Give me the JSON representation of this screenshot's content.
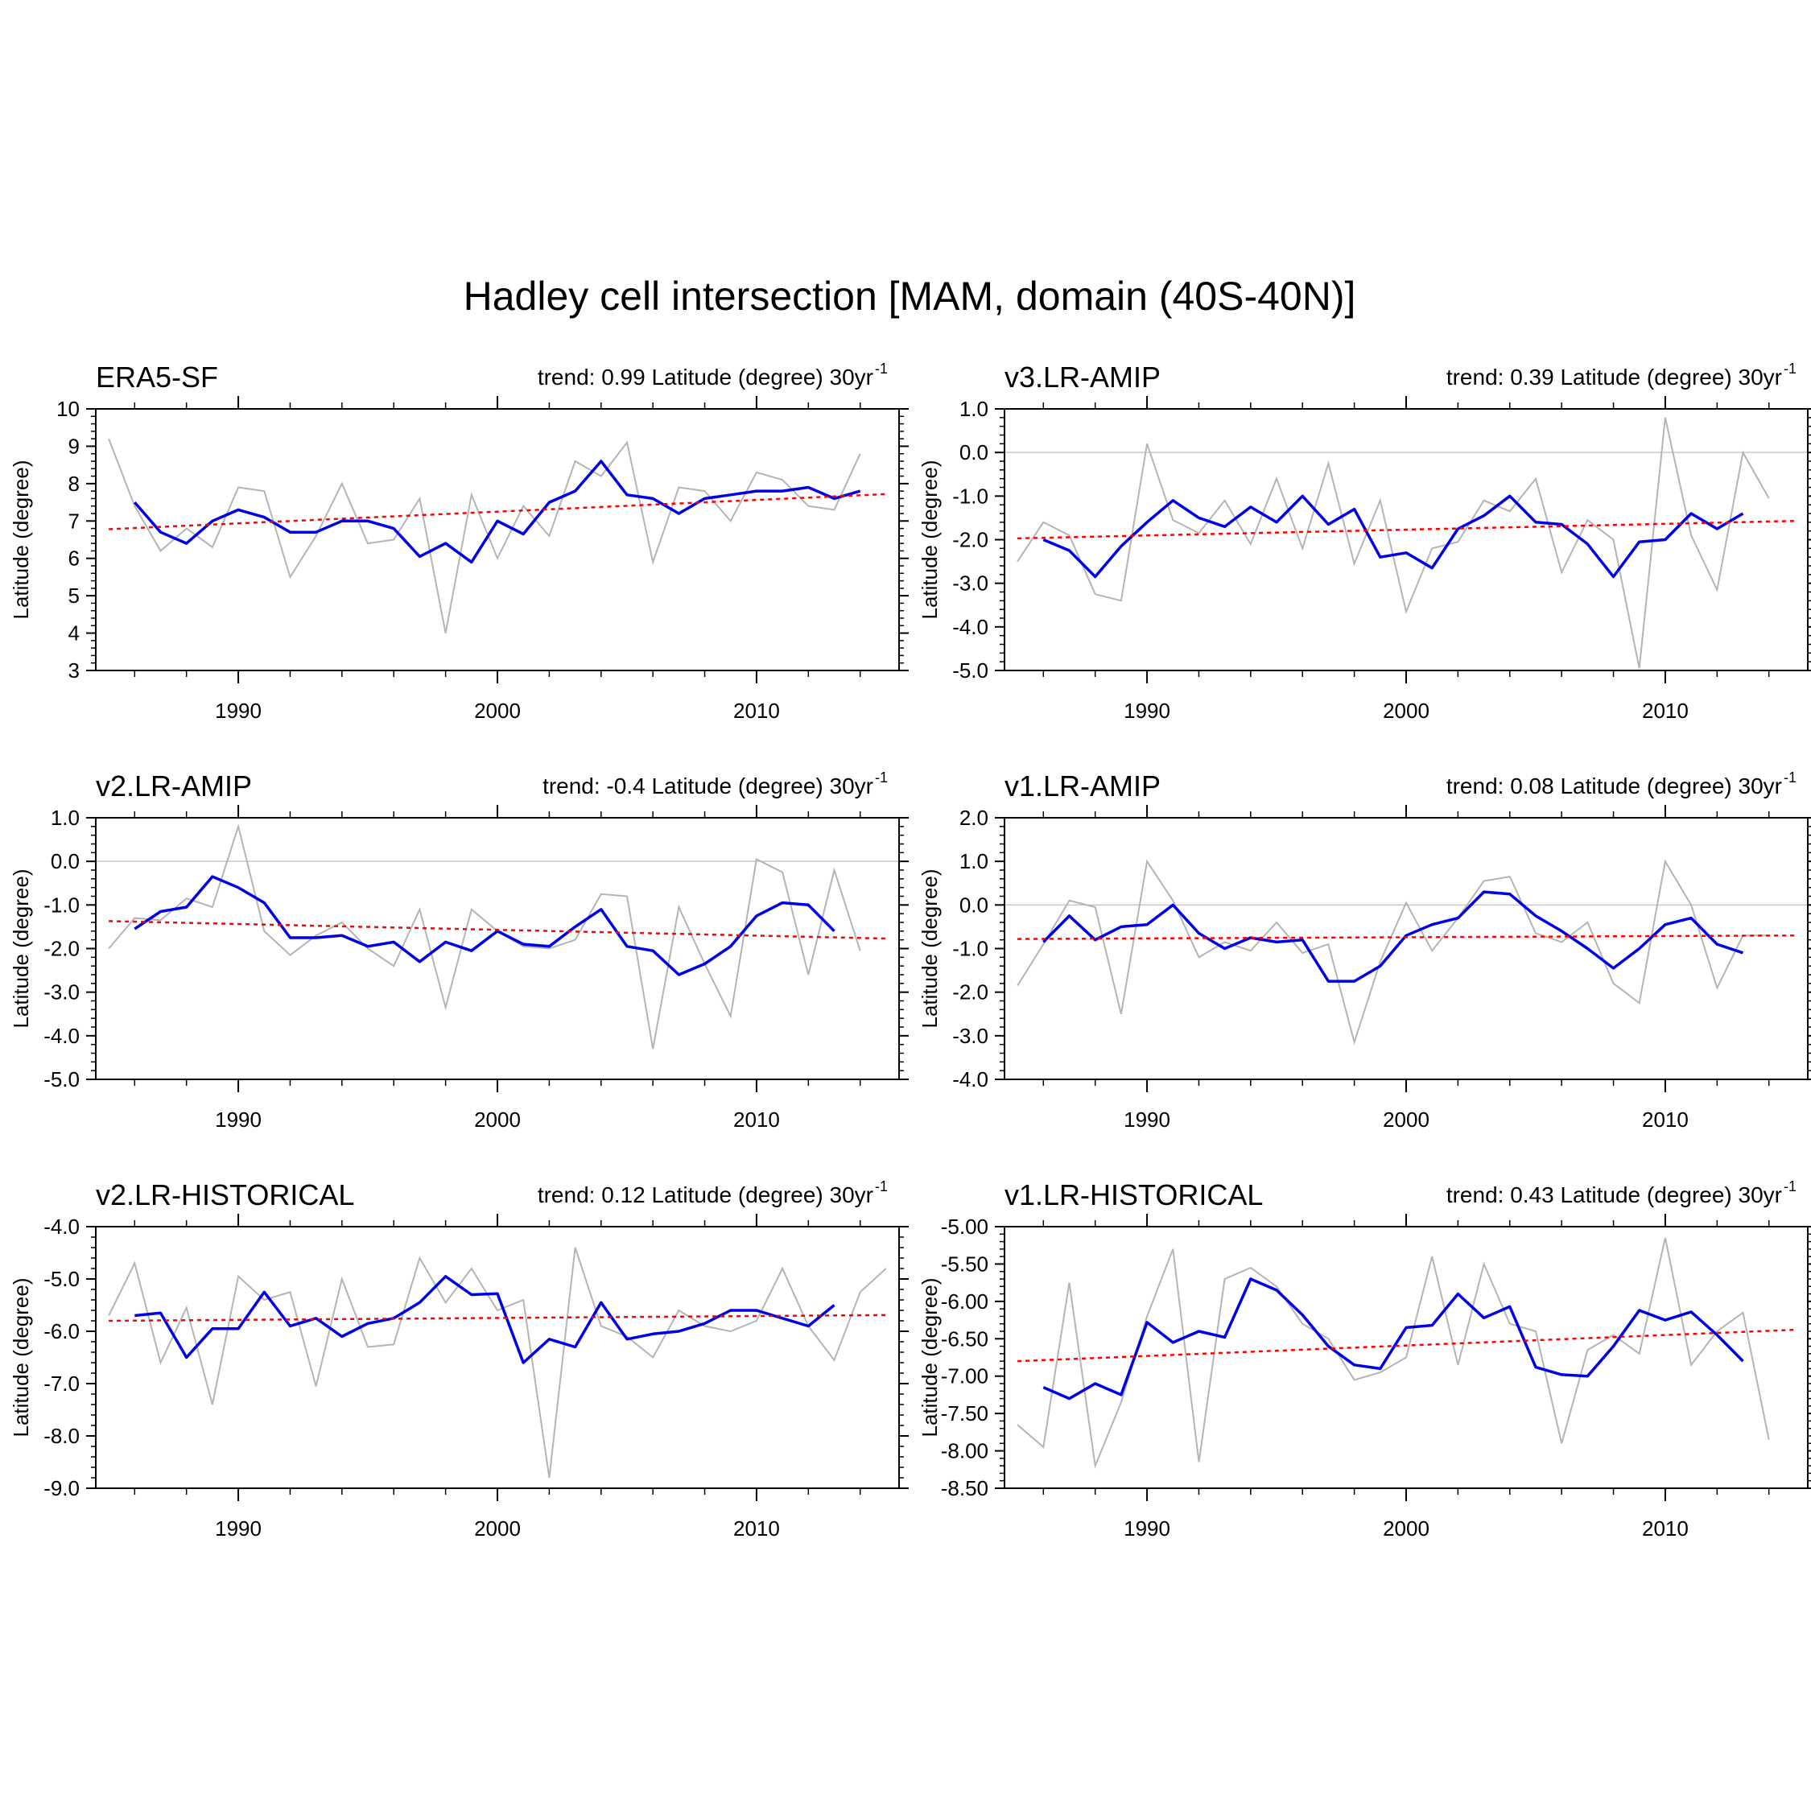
{
  "figure": {
    "title": "Hadley cell intersection [MAM, domain (40S-40N)]",
    "ylabel": "Latitude (degree)",
    "trend_prefix": "trend: ",
    "trend_unit": "Latitude (degree) 30yr",
    "trend_exponent": "-1",
    "colors": {
      "raw": "#b4b4b4",
      "smooth": "#0000e6",
      "trend": "#ff0000",
      "axis": "#000000",
      "zero": "#c8c8c8"
    }
  },
  "chart_data": [
    {
      "type": "line",
      "name": "ERA5-SF",
      "trend_value": "0.99",
      "x": [
        1985,
        1986,
        1987,
        1988,
        1989,
        1990,
        1991,
        1992,
        1993,
        1994,
        1995,
        1996,
        1997,
        1998,
        1999,
        2000,
        2001,
        2002,
        2003,
        2004,
        2005,
        2006,
        2007,
        2008,
        2009,
        2010,
        2011,
        2012,
        2013,
        2014,
        2015
      ],
      "raw": [
        9.2,
        7.4,
        6.2,
        6.8,
        6.3,
        7.9,
        7.8,
        5.5,
        6.6,
        8.0,
        6.4,
        6.5,
        7.6,
        4.0,
        7.7,
        6.0,
        7.4,
        6.6,
        8.6,
        8.2,
        9.1,
        5.9,
        7.9,
        7.8,
        7.0,
        8.3,
        8.1,
        7.4,
        7.3,
        8.8,
        null
      ],
      "smooth_x": [
        1986,
        1987,
        1988,
        1989,
        1990,
        1991,
        1992,
        1993,
        1994,
        1995,
        1996,
        1997,
        1998,
        1999,
        2000,
        2001,
        2002,
        2003,
        2004,
        2005,
        2006,
        2007,
        2008,
        2009,
        2010,
        2011,
        2012,
        2013,
        2014
      ],
      "smooth": [
        7.5,
        6.7,
        6.4,
        7.0,
        7.3,
        7.1,
        6.7,
        6.7,
        7.0,
        7.0,
        6.8,
        6.05,
        6.4,
        5.9,
        7.0,
        6.65,
        7.5,
        7.8,
        8.6,
        7.7,
        7.6,
        7.2,
        7.6,
        7.7,
        7.8,
        7.8,
        7.9,
        7.6,
        7.8
      ],
      "trend_line": [
        6.78,
        7.72
      ],
      "xlim": [
        1984.5,
        2015.5
      ],
      "ylim": [
        3,
        10
      ],
      "yticks": [
        3,
        4,
        5,
        6,
        7,
        8,
        9,
        10
      ],
      "ytick_labels": [
        "3",
        "4",
        "5",
        "6",
        "7",
        "8",
        "9",
        "10"
      ],
      "xticks": [
        1990,
        2000,
        2010
      ],
      "xtick_labels": [
        "1990",
        "2000",
        "2010"
      ],
      "zero_line": false
    },
    {
      "type": "line",
      "name": "v3.LR-AMIP",
      "trend_value": "0.39",
      "x": [
        1985,
        1986,
        1987,
        1988,
        1989,
        1990,
        1991,
        1992,
        1993,
        1994,
        1995,
        1996,
        1997,
        1998,
        1999,
        2000,
        2001,
        2002,
        2003,
        2004,
        2005,
        2006,
        2007,
        2008,
        2009,
        2010,
        2011,
        2012,
        2013,
        2014,
        2015
      ],
      "raw": [
        -2.5,
        -1.6,
        -1.9,
        -3.25,
        -3.4,
        0.2,
        -1.55,
        -1.85,
        -1.1,
        -2.1,
        -0.6,
        -2.2,
        -0.25,
        -2.55,
        -1.1,
        -3.65,
        -2.2,
        -2.05,
        -1.1,
        -1.35,
        -0.6,
        -2.75,
        -1.55,
        -2.0,
        -4.95,
        0.8,
        -1.9,
        -3.15,
        0.0,
        -1.05,
        null
      ],
      "smooth_x": [
        1986,
        1987,
        1988,
        1989,
        1990,
        1991,
        1992,
        1993,
        1994,
        1995,
        1996,
        1997,
        1998,
        1999,
        2000,
        2001,
        2002,
        2003,
        2004,
        2005,
        2006,
        2007,
        2008,
        2009,
        2010,
        2011,
        2012,
        2013,
        2014
      ],
      "smooth": [
        -2.0,
        -2.25,
        -2.85,
        -2.15,
        -1.6,
        -1.1,
        -1.5,
        -1.7,
        -1.25,
        -1.6,
        -1.0,
        -1.65,
        -1.3,
        -2.4,
        -2.3,
        -2.65,
        -1.75,
        -1.45,
        -1.0,
        -1.6,
        -1.65,
        -2.1,
        -2.85,
        -2.05,
        -2.0,
        -1.4,
        -1.75,
        -1.4,
        null
      ],
      "trend_line": [
        -1.97,
        -1.57
      ],
      "xlim": [
        1984.5,
        2015.5
      ],
      "ylim": [
        -5,
        1
      ],
      "yticks": [
        -5,
        -4,
        -3,
        -2,
        -1,
        0,
        1
      ],
      "ytick_labels": [
        "-5.0",
        "-4.0",
        "-3.0",
        "-2.0",
        "-1.0",
        "0.0",
        "1.0"
      ],
      "xticks": [
        1990,
        2000,
        2010
      ],
      "xtick_labels": [
        "1990",
        "2000",
        "2010"
      ],
      "zero_line": true
    },
    {
      "type": "line",
      "name": "v2.LR-AMIP",
      "trend_value": "-0.4",
      "x": [
        1985,
        1986,
        1987,
        1988,
        1989,
        1990,
        1991,
        1992,
        1993,
        1994,
        1995,
        1996,
        1997,
        1998,
        1999,
        2000,
        2001,
        2002,
        2003,
        2004,
        2005,
        2006,
        2007,
        2008,
        2009,
        2010,
        2011,
        2012,
        2013,
        2014,
        2015
      ],
      "raw": [
        -2.0,
        -1.3,
        -1.35,
        -0.85,
        -1.05,
        0.8,
        -1.6,
        -2.15,
        -1.7,
        -1.4,
        -2.0,
        -2.4,
        -1.1,
        -3.35,
        -1.1,
        -1.6,
        -1.95,
        -2.0,
        -1.8,
        -0.75,
        -0.8,
        -4.3,
        -1.05,
        -2.35,
        -3.55,
        0.05,
        -0.25,
        -2.6,
        -0.2,
        -2.05,
        null
      ],
      "smooth_x": [
        1986,
        1987,
        1988,
        1989,
        1990,
        1991,
        1992,
        1993,
        1994,
        1995,
        1996,
        1997,
        1998,
        1999,
        2000,
        2001,
        2002,
        2003,
        2004,
        2005,
        2006,
        2007,
        2008,
        2009,
        2010,
        2011,
        2012,
        2013,
        2014
      ],
      "smooth": [
        -1.55,
        -1.15,
        -1.05,
        -0.35,
        -0.6,
        -0.95,
        -1.75,
        -1.75,
        -1.7,
        -1.95,
        -1.85,
        -2.3,
        -1.85,
        -2.05,
        -1.6,
        -1.9,
        -1.95,
        -1.5,
        -1.1,
        -1.95,
        -2.05,
        -2.6,
        -2.35,
        -1.95,
        -1.25,
        -0.95,
        -1.0,
        -1.6,
        null
      ],
      "trend_line": [
        -1.37,
        -1.77
      ],
      "xlim": [
        1984.5,
        2015.5
      ],
      "ylim": [
        -5,
        1
      ],
      "yticks": [
        -5,
        -4,
        -3,
        -2,
        -1,
        0,
        1
      ],
      "ytick_labels": [
        "-5.0",
        "-4.0",
        "-3.0",
        "-2.0",
        "-1.0",
        "0.0",
        "1.0"
      ],
      "xticks": [
        1990,
        2000,
        2010
      ],
      "xtick_labels": [
        "1990",
        "2000",
        "2010"
      ],
      "zero_line": true
    },
    {
      "type": "line",
      "name": "v1.LR-AMIP",
      "trend_value": "0.08",
      "x": [
        1985,
        1986,
        1987,
        1988,
        1989,
        1990,
        1991,
        1992,
        1993,
        1994,
        1995,
        1996,
        1997,
        1998,
        1999,
        2000,
        2001,
        2002,
        2003,
        2004,
        2005,
        2006,
        2007,
        2008,
        2009,
        2010,
        2011,
        2012,
        2013,
        2014,
        2015
      ],
      "raw": [
        -1.85,
        -0.9,
        0.1,
        -0.05,
        -2.5,
        1.0,
        0.1,
        -1.2,
        -0.85,
        -1.05,
        -0.4,
        -1.1,
        -0.9,
        -3.15,
        -1.3,
        0.05,
        -1.05,
        -0.3,
        0.55,
        0.65,
        -0.65,
        -0.85,
        -0.4,
        -1.8,
        -2.25,
        1.0,
        0.0,
        -1.9,
        -0.7,
        -0.7,
        null
      ],
      "smooth_x": [
        1986,
        1987,
        1988,
        1989,
        1990,
        1991,
        1992,
        1993,
        1994,
        1995,
        1996,
        1997,
        1998,
        1999,
        2000,
        2001,
        2002,
        2003,
        2004,
        2005,
        2006,
        2007,
        2008,
        2009,
        2010,
        2011,
        2012,
        2013,
        2014
      ],
      "smooth": [
        -0.85,
        -0.25,
        -0.8,
        -0.5,
        -0.45,
        0.0,
        -0.65,
        -1.0,
        -0.75,
        -0.85,
        -0.8,
        -1.75,
        -1.75,
        -1.4,
        -0.7,
        -0.45,
        -0.3,
        0.3,
        0.25,
        -0.25,
        -0.6,
        -1.0,
        -1.45,
        -1.0,
        -0.45,
        -0.3,
        -0.9,
        -1.1,
        null
      ],
      "trend_line": [
        -0.78,
        -0.7
      ],
      "xlim": [
        1984.5,
        2015.5
      ],
      "ylim": [
        -4,
        2
      ],
      "yticks": [
        -4,
        -3,
        -2,
        -1,
        0,
        1,
        2
      ],
      "ytick_labels": [
        "-4.0",
        "-3.0",
        "-2.0",
        "-1.0",
        "0.0",
        "1.0",
        "2.0"
      ],
      "xticks": [
        1990,
        2000,
        2010
      ],
      "xtick_labels": [
        "1990",
        "2000",
        "2010"
      ],
      "zero_line": true
    },
    {
      "type": "line",
      "name": "v2.LR-HISTORICAL",
      "trend_value": "0.12",
      "x": [
        1985,
        1986,
        1987,
        1988,
        1989,
        1990,
        1991,
        1992,
        1993,
        1994,
        1995,
        1996,
        1997,
        1998,
        1999,
        2000,
        2001,
        2002,
        2003,
        2004,
        2005,
        2006,
        2007,
        2008,
        2009,
        2010,
        2011,
        2012,
        2013,
        2014,
        2015
      ],
      "raw": [
        -5.7,
        -4.7,
        -6.6,
        -5.55,
        -7.4,
        -4.95,
        -5.4,
        -5.25,
        -7.05,
        -5.0,
        -6.3,
        -6.25,
        -4.6,
        -5.45,
        -4.8,
        -5.6,
        -5.4,
        -8.8,
        -4.4,
        -5.9,
        -6.1,
        -6.5,
        -5.6,
        -5.9,
        -6.0,
        -5.8,
        -4.8,
        -5.9,
        -6.55,
        -5.25,
        -4.8
      ],
      "smooth_x": [
        1986,
        1987,
        1988,
        1989,
        1990,
        1991,
        1992,
        1993,
        1994,
        1995,
        1996,
        1997,
        1998,
        1999,
        2000,
        2001,
        2002,
        2003,
        2004,
        2005,
        2006,
        2007,
        2008,
        2009,
        2010,
        2011,
        2012,
        2013,
        2014
      ],
      "smooth": [
        -5.7,
        -5.65,
        -6.5,
        -5.95,
        -5.95,
        -5.25,
        -5.9,
        -5.75,
        -6.1,
        -5.85,
        -5.75,
        -5.45,
        -4.95,
        -5.3,
        -5.28,
        -6.6,
        -6.15,
        -6.3,
        -5.45,
        -6.15,
        -6.05,
        -6.0,
        -5.85,
        -5.6,
        -5.6,
        -5.75,
        -5.9,
        -5.5,
        null
      ],
      "trend_line": [
        -5.8,
        -5.69
      ],
      "xlim": [
        1984.5,
        2015.5
      ],
      "ylim": [
        -9,
        -4
      ],
      "yticks": [
        -9,
        -8,
        -7,
        -6,
        -5,
        -4
      ],
      "ytick_labels": [
        "-9.0",
        "-8.0",
        "-7.0",
        "-6.0",
        "-5.0",
        "-4.0"
      ],
      "xticks": [
        1990,
        2000,
        2010
      ],
      "xtick_labels": [
        "1990",
        "2000",
        "2010"
      ],
      "zero_line": false
    },
    {
      "type": "line",
      "name": "v1.LR-HISTORICAL",
      "trend_value": "0.43",
      "x": [
        1985,
        1986,
        1987,
        1988,
        1989,
        1990,
        1991,
        1992,
        1993,
        1994,
        1995,
        1996,
        1997,
        1998,
        1999,
        2000,
        2001,
        2002,
        2003,
        2004,
        2005,
        2006,
        2007,
        2008,
        2009,
        2010,
        2011,
        2012,
        2013,
        2014,
        2015
      ],
      "raw": [
        -7.65,
        -7.95,
        -5.75,
        -8.2,
        -7.35,
        -6.2,
        -5.3,
        -8.15,
        -5.7,
        -5.55,
        -5.8,
        -6.3,
        -6.5,
        -7.05,
        -6.95,
        -6.75,
        -5.4,
        -6.85,
        -5.5,
        -6.3,
        -6.4,
        -7.9,
        -6.65,
        -6.45,
        -6.7,
        -5.15,
        -6.85,
        -6.4,
        -6.15,
        -7.85,
        null
      ],
      "smooth_x": [
        1986,
        1987,
        1988,
        1989,
        1990,
        1991,
        1992,
        1993,
        1994,
        1995,
        1996,
        1997,
        1998,
        1999,
        2000,
        2001,
        2002,
        2003,
        2004,
        2005,
        2006,
        2007,
        2008,
        2009,
        2010,
        2011,
        2012,
        2013,
        2014
      ],
      "smooth": [
        -7.15,
        -7.3,
        -7.1,
        -7.25,
        -6.28,
        -6.55,
        -6.4,
        -6.48,
        -5.7,
        -5.85,
        -6.18,
        -6.6,
        -6.85,
        -6.9,
        -6.35,
        -6.32,
        -5.9,
        -6.22,
        -6.07,
        -6.88,
        -6.98,
        -7.0,
        -6.6,
        -6.12,
        -6.25,
        -6.14,
        -6.45,
        -6.8,
        null
      ],
      "trend_line": [
        -6.8,
        -6.38
      ],
      "xlim": [
        1984.5,
        2015.5
      ],
      "ylim": [
        -8.5,
        -5
      ],
      "yticks": [
        -8.5,
        -8,
        -7.5,
        -7,
        -6.5,
        -6,
        -5.5,
        -5
      ],
      "ytick_labels": [
        "-8.50",
        "-8.00",
        "-7.50",
        "-7.00",
        "-6.50",
        "-6.00",
        "-5.50",
        "-5.00"
      ],
      "xticks": [
        1990,
        2000,
        2010
      ],
      "xtick_labels": [
        "1990",
        "2000",
        "2010"
      ],
      "zero_line": false
    }
  ]
}
